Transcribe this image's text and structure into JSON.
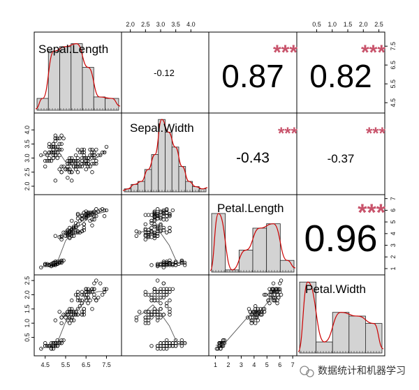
{
  "chart_data": {
    "type": "scatter",
    "variables": [
      "Sepal.Length",
      "Sepal.Width",
      "Petal.Length",
      "Petal.Width"
    ],
    "axes": [
      {
        "name": "Sepal.Length",
        "range": [
          4.1,
          8.1
        ],
        "ticks": [
          "4.5",
          "5.5",
          "6.5",
          "7.5"
        ],
        "tick_values": [
          4.5,
          5.5,
          6.5,
          7.5
        ],
        "side": "bottom"
      },
      {
        "name": "Sepal.Width",
        "range": [
          1.8,
          4.5
        ],
        "ticks": [
          "2.0",
          "2.5",
          "3.0",
          "3.5",
          "4.0"
        ],
        "tick_values": [
          2.0,
          2.5,
          3.0,
          3.5,
          4.0
        ],
        "side": "top"
      },
      {
        "name": "Petal.Length",
        "range": [
          0.7,
          7.1
        ],
        "ticks": [
          "1",
          "2",
          "3",
          "4",
          "5",
          "6",
          "7"
        ],
        "tick_values": [
          1,
          2,
          3,
          4,
          5,
          6,
          7
        ],
        "side": "bottom"
      },
      {
        "name": "Petal.Width",
        "range": [
          -0.05,
          2.6
        ],
        "ticks": [
          "0.5",
          "1.0",
          "1.5",
          "2.0",
          "2.5"
        ],
        "tick_values": [
          0.5,
          1.0,
          1.5,
          2.0,
          2.5
        ],
        "side": "top"
      }
    ],
    "correlations": [
      {
        "row": 1,
        "col": 2,
        "value": "-0.12",
        "stars": ""
      },
      {
        "row": 1,
        "col": 3,
        "value": "0.87",
        "stars": "***"
      },
      {
        "row": 1,
        "col": 4,
        "value": "0.82",
        "stars": "***"
      },
      {
        "row": 2,
        "col": 3,
        "value": "-0.43",
        "stars": "***"
      },
      {
        "row": 2,
        "col": 4,
        "value": "-0.37",
        "stars": "***"
      },
      {
        "row": 3,
        "col": 4,
        "value": "0.96",
        "stars": "***"
      }
    ],
    "histograms": [
      {
        "var": "Sepal.Length",
        "bins": [
          4.3,
          4.8,
          5.3,
          5.8,
          6.3,
          6.8,
          7.3,
          7.9
        ],
        "heights": [
          0.16,
          0.8,
          0.86,
          0.9,
          0.58,
          0.18,
          0.16
        ]
      },
      {
        "var": "Sepal.Width",
        "bins": [
          2.0,
          2.2,
          2.4,
          2.6,
          2.8,
          3.0,
          3.2,
          3.4,
          3.6,
          3.8,
          4.0,
          4.2,
          4.4
        ],
        "heights": [
          0.04,
          0.1,
          0.14,
          0.3,
          0.5,
          0.97,
          0.8,
          0.6,
          0.34,
          0.14,
          0.07,
          0.04
        ]
      },
      {
        "var": "Petal.Length",
        "bins": [
          1,
          2,
          3,
          4,
          5,
          6,
          7
        ],
        "heights": [
          0.8,
          0.03,
          0.3,
          0.6,
          0.66,
          0.16
        ]
      },
      {
        "var": "Petal.Width",
        "bins": [
          0,
          0.5,
          1.0,
          1.5,
          2.0,
          2.5
        ],
        "heights": [
          0.96,
          0.15,
          0.55,
          0.5,
          0.4
        ]
      }
    ],
    "grid": false,
    "legend": "none"
  },
  "watermark": {
    "text": "数据统计和机器学习"
  },
  "colors": {
    "stars": "#c8536b",
    "density": "#cc0000",
    "bar_fill": "#d3d3d3",
    "smooth": "#555555"
  }
}
